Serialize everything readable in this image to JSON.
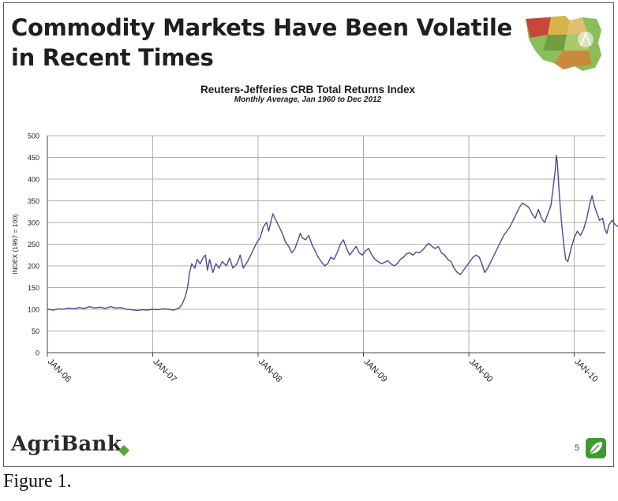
{
  "slide": {
    "title": "Commodity Markets Have Been Volatile in Recent Times",
    "brand": "AgriBank",
    "page_number": "5",
    "caption": "Figure 1."
  },
  "icons": {
    "map": "midwest-map-icon",
    "leaf": "leaf-icon",
    "diamond": "green-diamond-icon"
  },
  "colors": {
    "line": "#4a4a9a",
    "grid": "#b0b0b0",
    "brand_green": "#3f9b2f"
  },
  "chart_data": {
    "type": "line",
    "title": "Reuters-Jefferies CRB Total Returns Index",
    "subtitle": "Monthly Average, Jan 1960 to Dec 2012",
    "ylabel": "INDEX (1967 = 100)",
    "xlabel": "",
    "ylim": [
      0,
      500
    ],
    "yticks": [
      0,
      50,
      100,
      150,
      200,
      250,
      300,
      350,
      400,
      450,
      500
    ],
    "grid": true,
    "xticks": [
      {
        "label": "JAN-06",
        "x": 0
      },
      {
        "label": "JAN-07",
        "x": 1
      },
      {
        "label": "JAN-08",
        "x": 2
      },
      {
        "label": "JAN-09",
        "x": 3
      },
      {
        "label": "JAN-00",
        "x": 4
      },
      {
        "label": "JAN-10",
        "x": 5
      }
    ],
    "xlim": [
      0,
      5.45
    ],
    "series": [
      {
        "points": [
          [
            0.0,
            100
          ],
          [
            0.06,
            98
          ],
          [
            0.1,
            101
          ],
          [
            0.15,
            100
          ],
          [
            0.2,
            103
          ],
          [
            0.25,
            101
          ],
          [
            0.3,
            104
          ],
          [
            0.35,
            102
          ],
          [
            0.4,
            106
          ],
          [
            0.45,
            103
          ],
          [
            0.5,
            105
          ],
          [
            0.55,
            102
          ],
          [
            0.6,
            106
          ],
          [
            0.65,
            103
          ],
          [
            0.7,
            104
          ],
          [
            0.75,
            100
          ],
          [
            0.8,
            99
          ],
          [
            0.85,
            97
          ],
          [
            0.9,
            99
          ],
          [
            0.95,
            98
          ],
          [
            1.0,
            100
          ],
          [
            1.05,
            99
          ],
          [
            1.1,
            101
          ],
          [
            1.15,
            100
          ],
          [
            1.2,
            98
          ],
          [
            1.25,
            103
          ],
          [
            1.28,
            112
          ],
          [
            1.31,
            130
          ],
          [
            1.33,
            150
          ],
          [
            1.35,
            185
          ],
          [
            1.37,
            205
          ],
          [
            1.4,
            195
          ],
          [
            1.42,
            215
          ],
          [
            1.45,
            205
          ],
          [
            1.48,
            220
          ],
          [
            1.5,
            225
          ],
          [
            1.52,
            190
          ],
          [
            1.54,
            215
          ],
          [
            1.57,
            185
          ],
          [
            1.6,
            205
          ],
          [
            1.63,
            195
          ],
          [
            1.66,
            210
          ],
          [
            1.7,
            200
          ],
          [
            1.73,
            218
          ],
          [
            1.76,
            195
          ],
          [
            1.8,
            205
          ],
          [
            1.83,
            225
          ],
          [
            1.86,
            195
          ],
          [
            1.9,
            210
          ],
          [
            1.93,
            225
          ],
          [
            1.96,
            240
          ],
          [
            1.99,
            255
          ],
          [
            2.02,
            265
          ],
          [
            2.05,
            290
          ],
          [
            2.08,
            300
          ],
          [
            2.1,
            280
          ],
          [
            2.12,
            300
          ],
          [
            2.14,
            320
          ],
          [
            2.16,
            310
          ],
          [
            2.18,
            300
          ],
          [
            2.2,
            290
          ],
          [
            2.23,
            275
          ],
          [
            2.26,
            255
          ],
          [
            2.29,
            245
          ],
          [
            2.32,
            230
          ],
          [
            2.35,
            240
          ],
          [
            2.38,
            260
          ],
          [
            2.4,
            275
          ],
          [
            2.42,
            265
          ],
          [
            2.45,
            260
          ],
          [
            2.48,
            270
          ],
          [
            2.51,
            250
          ],
          [
            2.54,
            235
          ],
          [
            2.57,
            220
          ],
          [
            2.6,
            210
          ],
          [
            2.63,
            200
          ],
          [
            2.66,
            205
          ],
          [
            2.69,
            220
          ],
          [
            2.72,
            215
          ],
          [
            2.75,
            230
          ],
          [
            2.78,
            250
          ],
          [
            2.81,
            260
          ],
          [
            2.84,
            240
          ],
          [
            2.87,
            225
          ],
          [
            2.9,
            235
          ],
          [
            2.93,
            245
          ],
          [
            2.96,
            230
          ],
          [
            2.99,
            225
          ],
          [
            3.02,
            235
          ],
          [
            3.05,
            240
          ],
          [
            3.08,
            225
          ],
          [
            3.11,
            215
          ],
          [
            3.14,
            210
          ],
          [
            3.17,
            205
          ],
          [
            3.2,
            208
          ],
          [
            3.23,
            212
          ],
          [
            3.26,
            205
          ],
          [
            3.29,
            200
          ],
          [
            3.32,
            205
          ],
          [
            3.35,
            215
          ],
          [
            3.38,
            220
          ],
          [
            3.41,
            228
          ],
          [
            3.44,
            230
          ],
          [
            3.47,
            225
          ],
          [
            3.5,
            232
          ],
          [
            3.53,
            230
          ],
          [
            3.56,
            236
          ],
          [
            3.59,
            245
          ],
          [
            3.62,
            252
          ],
          [
            3.65,
            245
          ],
          [
            3.68,
            240
          ],
          [
            3.71,
            245
          ],
          [
            3.74,
            230
          ],
          [
            3.77,
            225
          ],
          [
            3.8,
            215
          ],
          [
            3.83,
            210
          ],
          [
            3.86,
            195
          ],
          [
            3.89,
            185
          ],
          [
            3.92,
            180
          ],
          [
            3.95,
            190
          ],
          [
            3.98,
            200
          ],
          [
            4.01,
            210
          ],
          [
            4.04,
            220
          ],
          [
            4.07,
            225
          ],
          [
            4.1,
            220
          ],
          [
            4.13,
            200
          ],
          [
            4.15,
            185
          ],
          [
            4.18,
            195
          ],
          [
            4.21,
            210
          ],
          [
            4.24,
            225
          ],
          [
            4.27,
            240
          ],
          [
            4.3,
            255
          ],
          [
            4.33,
            270
          ],
          [
            4.36,
            280
          ],
          [
            4.39,
            290
          ],
          [
            4.42,
            305
          ],
          [
            4.45,
            320
          ],
          [
            4.48,
            335
          ],
          [
            4.51,
            345
          ],
          [
            4.54,
            340
          ],
          [
            4.57,
            335
          ],
          [
            4.6,
            320
          ],
          [
            4.63,
            310
          ],
          [
            4.66,
            330
          ],
          [
            4.69,
            310
          ],
          [
            4.72,
            300
          ],
          [
            4.75,
            320
          ],
          [
            4.78,
            340
          ],
          [
            4.8,
            380
          ],
          [
            4.82,
            420
          ],
          [
            4.83,
            455
          ],
          [
            4.84,
            440
          ],
          [
            4.86,
            360
          ],
          [
            4.88,
            300
          ],
          [
            4.9,
            250
          ],
          [
            4.92,
            215
          ],
          [
            4.94,
            210
          ],
          [
            4.97,
            240
          ],
          [
            5.0,
            265
          ],
          [
            5.03,
            280
          ],
          [
            5.06,
            270
          ],
          [
            5.09,
            285
          ],
          [
            5.12,
            310
          ],
          [
            5.15,
            345
          ],
          [
            5.17,
            362
          ],
          [
            5.19,
            340
          ],
          [
            5.21,
            325
          ],
          [
            5.24,
            305
          ],
          [
            5.27,
            310
          ],
          [
            5.29,
            285
          ],
          [
            5.31,
            275
          ],
          [
            5.33,
            295
          ],
          [
            5.36,
            305
          ],
          [
            5.39,
            295
          ],
          [
            5.42,
            290
          ]
        ]
      }
    ]
  }
}
